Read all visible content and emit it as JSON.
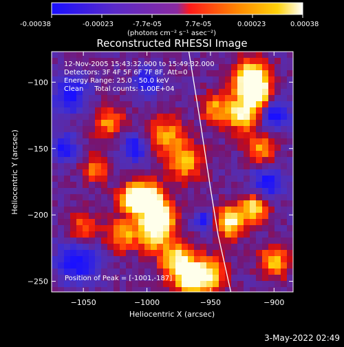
{
  "colorbar": {
    "ticks": [
      "-0.00038",
      "-0.00023",
      "-7.7e-05",
      "7.7e-05",
      "0.00023",
      "0.00038"
    ],
    "units": "(photons cm⁻² s⁻¹ asec⁻²)",
    "colors": [
      "#1a10ff",
      "#5a2ac8",
      "#8a2aa0",
      "#ff1a1a",
      "#ff8c00",
      "#ffd20a",
      "#ffffff"
    ]
  },
  "footer": {
    "timestamp": "3-May-2022 02:49"
  },
  "chart_data": {
    "type": "heatmap",
    "title": "Reconstructed RHESSI Image",
    "xlabel": "Heliocentric X (arcsec)",
    "ylabel": "Heliocentric Y (arcsec)",
    "xlim": [
      -1075,
      -885
    ],
    "ylim": [
      -258,
      -77
    ],
    "xticks": [
      -1050,
      -1000,
      -950,
      -900
    ],
    "yticks": [
      -100,
      -150,
      -200,
      -250
    ],
    "xtick_labels": [
      "−1050",
      "−1000",
      "−950",
      "−900"
    ],
    "ytick_labels": [
      "−100",
      "−150",
      "−200",
      "−250"
    ],
    "annotations": [
      "12-Nov-2005 15:43:32.000 to 15:49:32.000",
      "Detectors: 3F 4F 5F 6F 7F 8F, Att=0",
      "Energy Range: 25.0 - 50.0 keV",
      "Clean     Total counts: 1.00E+04"
    ],
    "peak_label": "Position of Peak = [-1001,-187]",
    "peak_position": [
      -1001,
      -187
    ],
    "limb_curve": [
      [
        -967,
        -77
      ],
      [
        -958,
        -130
      ],
      [
        -950,
        -180
      ],
      [
        -944,
        -215
      ],
      [
        -934,
        -258
      ]
    ],
    "bright_regions": [
      {
        "x": -918,
        "y": -97,
        "intensity": 1.0,
        "size": 14
      },
      {
        "x": -915,
        "y": -110,
        "intensity": 0.9,
        "size": 12
      },
      {
        "x": -925,
        "y": -125,
        "intensity": 0.75,
        "size": 12
      },
      {
        "x": -1000,
        "y": -187,
        "intensity": 1.0,
        "size": 12
      },
      {
        "x": -1012,
        "y": -188,
        "intensity": 0.95,
        "size": 10
      },
      {
        "x": -990,
        "y": -200,
        "intensity": 0.9,
        "size": 12
      },
      {
        "x": -995,
        "y": -213,
        "intensity": 0.85,
        "size": 14
      },
      {
        "x": -975,
        "y": -235,
        "intensity": 0.9,
        "size": 14
      },
      {
        "x": -965,
        "y": -250,
        "intensity": 0.85,
        "size": 12
      },
      {
        "x": -950,
        "y": -245,
        "intensity": 0.8,
        "size": 12
      },
      {
        "x": -935,
        "y": -205,
        "intensity": 0.9,
        "size": 12
      },
      {
        "x": -915,
        "y": -195,
        "intensity": 0.85,
        "size": 10
      },
      {
        "x": -970,
        "y": -160,
        "intensity": 0.65,
        "size": 14
      },
      {
        "x": -985,
        "y": -140,
        "intensity": 0.6,
        "size": 14
      },
      {
        "x": -1030,
        "y": -130,
        "intensity": 0.6,
        "size": 12
      },
      {
        "x": -1040,
        "y": -165,
        "intensity": 0.55,
        "size": 10
      },
      {
        "x": -1050,
        "y": -210,
        "intensity": 0.5,
        "size": 12
      },
      {
        "x": -1020,
        "y": -215,
        "intensity": 0.6,
        "size": 12
      },
      {
        "x": -910,
        "y": -150,
        "intensity": 0.6,
        "size": 12
      },
      {
        "x": -900,
        "y": -235,
        "intensity": 0.65,
        "size": 12
      },
      {
        "x": -945,
        "y": -120,
        "intensity": 0.6,
        "size": 12
      }
    ],
    "dark_regions": [
      {
        "x": -1055,
        "y": -235,
        "size": 16
      },
      {
        "x": -1060,
        "y": -110,
        "size": 14
      },
      {
        "x": -1065,
        "y": -150,
        "size": 10
      },
      {
        "x": -900,
        "y": -125,
        "size": 12
      },
      {
        "x": -905,
        "y": -175,
        "size": 12
      },
      {
        "x": -1000,
        "y": -100,
        "size": 10
      },
      {
        "x": -1010,
        "y": -150,
        "size": 10
      },
      {
        "x": -955,
        "y": -205,
        "size": 8
      }
    ]
  }
}
